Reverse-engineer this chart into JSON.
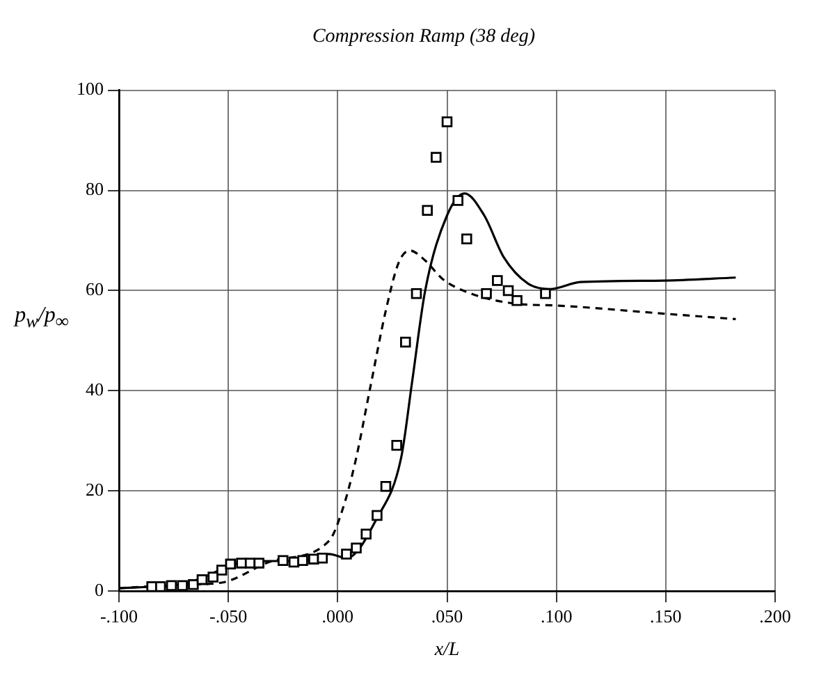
{
  "chart_data": {
    "type": "line",
    "title": "Compression Ramp (38 deg)",
    "xlabel": "x/L",
    "ylabel": "p$_{w}$/p$_{∞}$",
    "xlim": [
      -0.1,
      0.2
    ],
    "xticks": [
      {
        "value": -0.1,
        "label": "-.100"
      },
      {
        "value": -0.05,
        "label": "-.050"
      },
      {
        "value": 0,
        "label": ".000"
      },
      {
        "value": 0.05,
        "label": ".050"
      },
      {
        "value": 0.1,
        "label": ".100"
      },
      {
        "value": 0.15,
        "label": ".150"
      },
      {
        "value": 0.2,
        "label": ".200"
      }
    ],
    "ylim": [
      0,
      100
    ],
    "yticks": [
      0,
      20,
      40,
      60,
      80,
      100
    ],
    "grid": true,
    "legend": false,
    "series": [
      {
        "type": "scatter",
        "marker": "square",
        "color": "#000000",
        "x": [
          -0.085,
          -0.081,
          -0.076,
          -0.071,
          -0.066,
          -0.062,
          -0.057,
          -0.053,
          -0.049,
          -0.044,
          -0.04,
          -0.036,
          -0.025,
          -0.02,
          -0.016,
          -0.011,
          -0.007,
          0.004,
          0.0085,
          0.013,
          0.018,
          0.022,
          0.027,
          0.031,
          0.036,
          0.041,
          0.045,
          0.05,
          0.055,
          0.059,
          0.068,
          0.073,
          0.078,
          0.082,
          0.095
        ],
        "values": [
          0.9,
          0.9,
          1.1,
          1.1,
          1.3,
          2.3,
          2.8,
          4.2,
          5.4,
          5.6,
          5.6,
          5.6,
          6.1,
          5.8,
          6.1,
          6.4,
          6.6,
          7.4,
          8.6,
          11.4,
          15.1,
          20.9,
          29.1,
          49.7,
          59.4,
          76,
          86.6,
          93.7,
          78,
          70.3,
          59.4,
          62,
          60,
          58,
          59.4
        ]
      },
      {
        "type": "line",
        "marker": "none",
        "line_style": "solid",
        "color": "#000000",
        "x": [
          -0.1,
          -0.08,
          -0.07,
          -0.06,
          -0.05,
          -0.04,
          -0.03,
          -0.02,
          -0.01,
          -0.004,
          0.004,
          0.018,
          0.029,
          0.034,
          0.04,
          0.05,
          0.058,
          0.067,
          0.076,
          0.087,
          0.097,
          0.111,
          0.149,
          0.182
        ],
        "values": [
          0.6,
          1,
          1.5,
          3,
          5,
          6,
          6,
          6,
          6.5,
          7.4,
          6.6,
          14.6,
          26.6,
          41.7,
          60,
          75,
          79.4,
          75,
          66.6,
          61.4,
          60.3,
          61.7,
          62,
          62.6
        ]
      },
      {
        "type": "line",
        "marker": "none",
        "line_style": "dashed",
        "color": "#000000",
        "x": [
          -0.1,
          -0.07,
          -0.053,
          -0.03,
          -0.004,
          0.002,
          0.008,
          0.015,
          0.022,
          0.028,
          0.033,
          0.04,
          0.048,
          0.061,
          0.081,
          0.101,
          0.149,
          0.182
        ],
        "values": [
          0.6,
          1.3,
          1.7,
          6,
          10,
          16,
          25.7,
          40.9,
          56,
          65.7,
          68,
          66,
          62.3,
          59.4,
          57.4,
          57,
          55.4,
          54.3
        ]
      }
    ]
  }
}
